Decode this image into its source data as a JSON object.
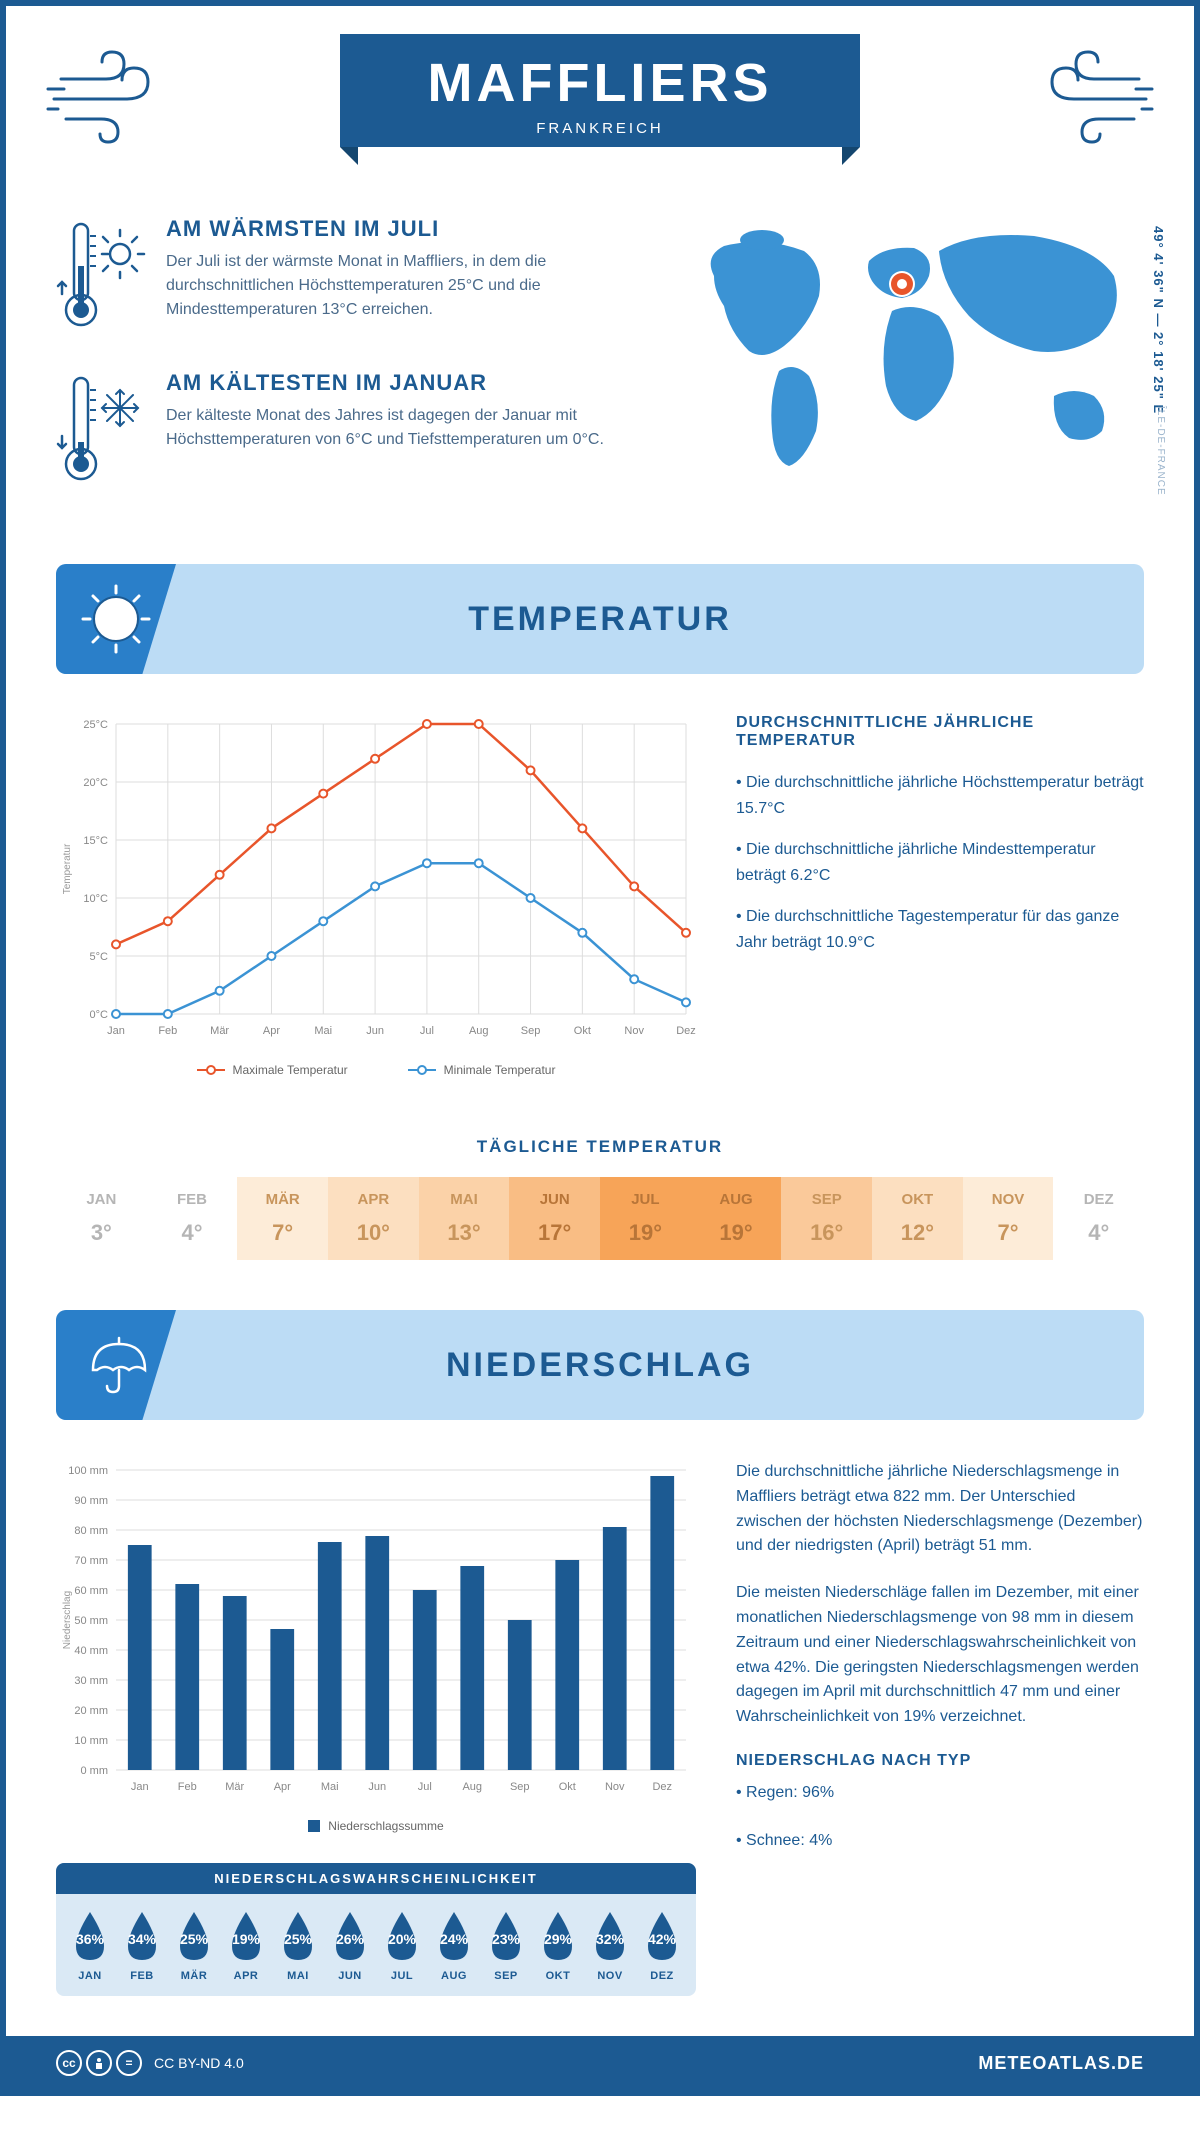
{
  "header": {
    "title": "MAFFLIERS",
    "subtitle": "FRANKREICH"
  },
  "coordinates": "49° 4' 36\" N — 2° 18' 25\" E",
  "region": "ÎLE-DE-FRANCE",
  "warmest": {
    "title": "AM WÄRMSTEN IM JULI",
    "text": "Der Juli ist der wärmste Monat in Maffliers, in dem die durchschnittlichen Höchsttemperaturen 25°C und die Mindesttemperaturen 13°C erreichen."
  },
  "coldest": {
    "title": "AM KÄLTESTEN IM JANUAR",
    "text": "Der kälteste Monat des Jahres ist dagegen der Januar mit Höchsttemperaturen von 6°C und Tiefsttemperaturen um 0°C."
  },
  "temp_section": {
    "banner": "TEMPERATUR",
    "chart": {
      "type": "line",
      "months": [
        "Jan",
        "Feb",
        "Mär",
        "Apr",
        "Mai",
        "Jun",
        "Jul",
        "Aug",
        "Sep",
        "Okt",
        "Nov",
        "Dez"
      ],
      "max_values": [
        6,
        8,
        12,
        16,
        19,
        22,
        25,
        25,
        21,
        16,
        11,
        7
      ],
      "min_values": [
        0,
        0,
        2,
        5,
        8,
        11,
        13,
        13,
        10,
        7,
        3,
        1
      ],
      "max_color": "#e8552b",
      "min_color": "#3b93d4",
      "grid_color": "#dddddd",
      "y_min": 0,
      "y_max": 25,
      "y_step": 5,
      "y_label": "Temperatur",
      "legend_max": "Maximale Temperatur",
      "legend_min": "Minimale Temperatur"
    },
    "info_title": "DURCHSCHNITTLICHE JÄHRLICHE TEMPERATUR",
    "bullets": [
      "• Die durchschnittliche jährliche Höchsttemperatur beträgt 15.7°C",
      "• Die durchschnittliche jährliche Mindesttemperatur beträgt 6.2°C",
      "• Die durchschnittliche Tagestemperatur für das ganze Jahr beträgt 10.9°C"
    ]
  },
  "daily_temp": {
    "title": "TÄGLICHE TEMPERATUR",
    "months": [
      "JAN",
      "FEB",
      "MÄR",
      "APR",
      "MAI",
      "JUN",
      "JUL",
      "AUG",
      "SEP",
      "OKT",
      "NOV",
      "DEZ"
    ],
    "values": [
      "3°",
      "4°",
      "7°",
      "10°",
      "13°",
      "17°",
      "19°",
      "19°",
      "16°",
      "12°",
      "7°",
      "4°"
    ],
    "bg_colors": [
      "#ffffff",
      "#ffffff",
      "#fdecd8",
      "#fcdfc0",
      "#fbd2a8",
      "#f9bd84",
      "#f7a458",
      "#f7a458",
      "#fac99a",
      "#fcdfc0",
      "#fdecd8",
      "#ffffff"
    ],
    "text_colors": [
      "#b5b5b5",
      "#b5b5b5",
      "#c8955c",
      "#c8955c",
      "#c8955c",
      "#b87538",
      "#b87538",
      "#b87538",
      "#c8955c",
      "#c8955c",
      "#c8955c",
      "#b5b5b5"
    ]
  },
  "precip_section": {
    "banner": "NIEDERSCHLAG",
    "chart": {
      "type": "bar",
      "months": [
        "Jan",
        "Feb",
        "Mär",
        "Apr",
        "Mai",
        "Jun",
        "Jul",
        "Aug",
        "Sep",
        "Okt",
        "Nov",
        "Dez"
      ],
      "values": [
        75,
        62,
        58,
        47,
        76,
        78,
        60,
        68,
        50,
        70,
        81,
        98
      ],
      "bar_color": "#1c5a92",
      "y_min": 0,
      "y_max": 100,
      "y_step": 10,
      "y_label": "Niederschlag",
      "legend": "Niederschlagssumme"
    },
    "text1": "Die durchschnittliche jährliche Niederschlagsmenge in Maffliers beträgt etwa 822 mm. Der Unterschied zwischen der höchsten Niederschlagsmenge (Dezember) und der niedrigsten (April) beträgt 51 mm.",
    "text2": "Die meisten Niederschläge fallen im Dezember, mit einer monatlichen Niederschlagsmenge von 98 mm in diesem Zeitraum und einer Niederschlagswahrscheinlichkeit von etwa 42%. Die geringsten Niederschlagsmengen werden dagegen im April mit durchschnittlich 47 mm und einer Wahrscheinlichkeit von 19% verzeichnet.",
    "type_title": "NIEDERSCHLAG NACH TYP",
    "type_bullets": [
      "• Regen: 96%",
      "• Schnee: 4%"
    ]
  },
  "prob": {
    "title": "NIEDERSCHLAGSWAHRSCHEINLICHKEIT",
    "months": [
      "JAN",
      "FEB",
      "MÄR",
      "APR",
      "MAI",
      "JUN",
      "JUL",
      "AUG",
      "SEP",
      "OKT",
      "NOV",
      "DEZ"
    ],
    "values": [
      "36%",
      "34%",
      "25%",
      "19%",
      "25%",
      "26%",
      "20%",
      "24%",
      "23%",
      "29%",
      "32%",
      "42%"
    ],
    "drop_color": "#1c5a92"
  },
  "footer": {
    "license": "CC BY-ND 4.0",
    "brand": "METEOATLAS.DE"
  }
}
